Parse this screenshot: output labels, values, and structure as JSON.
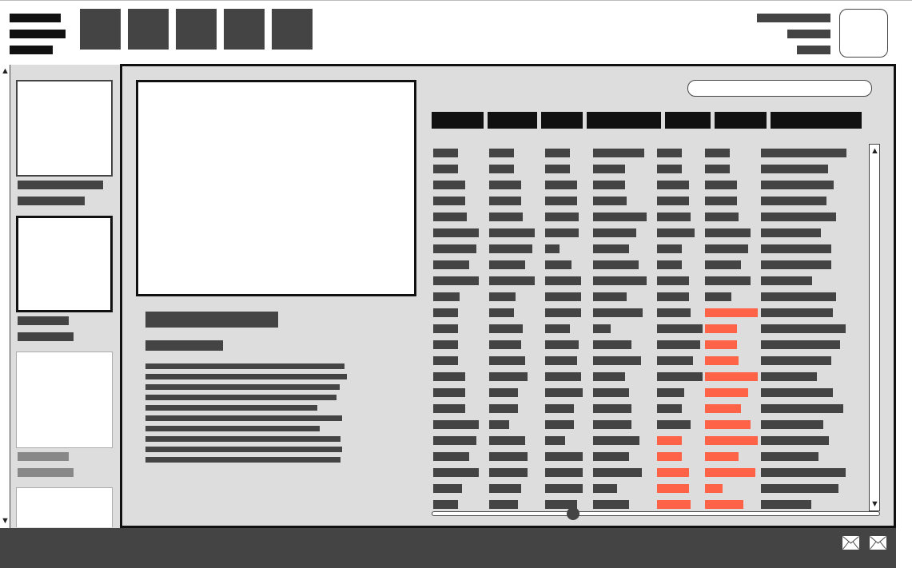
{
  "app": {
    "title": "",
    "accent_color": "#ff6347",
    "frame_color": "#111111",
    "text_placeholder_color": "#444444"
  },
  "header": {
    "tabs": [
      {
        "icon": "tab-1"
      },
      {
        "icon": "tab-2"
      },
      {
        "icon": "tab-3"
      },
      {
        "icon": "tab-4"
      },
      {
        "icon": "tab-5"
      }
    ],
    "avatar_icon": "avatar"
  },
  "sidebar": {
    "items": [
      {
        "selected": false
      },
      {
        "selected": true
      },
      {
        "selected": false
      },
      {
        "selected": false
      }
    ]
  },
  "table": {
    "columns": 7,
    "rows": 23,
    "highlight_color": "#ff6347"
  },
  "search": {
    "placeholder": ""
  },
  "footer": {
    "buttons": [
      {
        "icon": "mail-icon"
      },
      {
        "icon": "mail-icon"
      }
    ]
  }
}
